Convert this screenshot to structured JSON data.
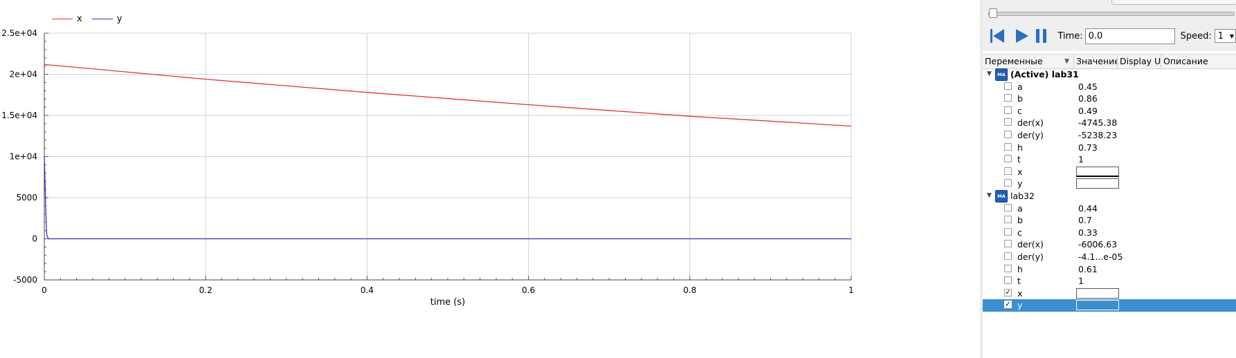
{
  "plot": {
    "legend": [
      {
        "name": "x",
        "color": "#e8302e"
      },
      {
        "name": "y",
        "color": "#2b2bd8"
      }
    ],
    "xlabel": "time (s)",
    "y_ticks": [
      "2.5e+04",
      "2e+04",
      "1.5e+04",
      "1e+04",
      "5000",
      "0",
      "-5000"
    ],
    "x_ticks": [
      "0",
      "0.2",
      "0.4",
      "0.6",
      "0.8",
      "1"
    ]
  },
  "chart_data": {
    "type": "line",
    "xlabel": "time (s)",
    "ylabel": "",
    "xlim": [
      0,
      1
    ],
    "ylim": [
      -5000,
      25000
    ],
    "grid": true,
    "legend_position": "top-left",
    "series": [
      {
        "name": "x",
        "color": "#e8302e",
        "x": [
          0,
          0.2,
          0.4,
          0.6,
          0.8,
          1.0
        ],
        "y": [
          21200,
          19400,
          17800,
          16300,
          14900,
          13700
        ]
      },
      {
        "name": "y",
        "color": "#2b2bd8",
        "x": [
          0,
          0.001,
          0.002,
          0.003,
          0.005,
          1.0
        ],
        "y": [
          10000,
          6500,
          3000,
          500,
          0,
          0
        ]
      }
    ]
  },
  "controls": {
    "time_label": "Time:",
    "time_value": "0.0",
    "speed_label": "Speed:",
    "speed_value": "1"
  },
  "table": {
    "headers": [
      "Переменные",
      "Значение",
      "Display Un",
      "Описание"
    ]
  },
  "models": [
    {
      "label": "(Active) lab31",
      "active": true,
      "vars": [
        {
          "name": "a",
          "value": "0.45",
          "checked": false
        },
        {
          "name": "b",
          "value": "0.86",
          "checked": false
        },
        {
          "name": "c",
          "value": "0.49",
          "checked": false
        },
        {
          "name": "der(x)",
          "value": "-4745.38",
          "checked": false
        },
        {
          "name": "der(y)",
          "value": "-5238.23",
          "checked": false
        },
        {
          "name": "h",
          "value": "0.73",
          "checked": false
        },
        {
          "name": "t",
          "value": "1",
          "checked": false
        },
        {
          "name": "x",
          "value": "",
          "checked": false,
          "box": true
        },
        {
          "name": "y",
          "value": "",
          "checked": false,
          "box": true
        }
      ]
    },
    {
      "label": "lab32",
      "active": false,
      "vars": [
        {
          "name": "a",
          "value": "0.44",
          "checked": false
        },
        {
          "name": "b",
          "value": "0.7",
          "checked": false
        },
        {
          "name": "c",
          "value": "0.33",
          "checked": false
        },
        {
          "name": "der(x)",
          "value": "-6006.63",
          "checked": false
        },
        {
          "name": "der(y)",
          "value": "-4.1...e-05",
          "checked": false
        },
        {
          "name": "h",
          "value": "0.61",
          "checked": false
        },
        {
          "name": "t",
          "value": "1",
          "checked": false
        },
        {
          "name": "x",
          "value": "",
          "checked": true,
          "box": true
        },
        {
          "name": "y",
          "value": "",
          "checked": true,
          "box": true,
          "selected": true
        }
      ]
    }
  ]
}
